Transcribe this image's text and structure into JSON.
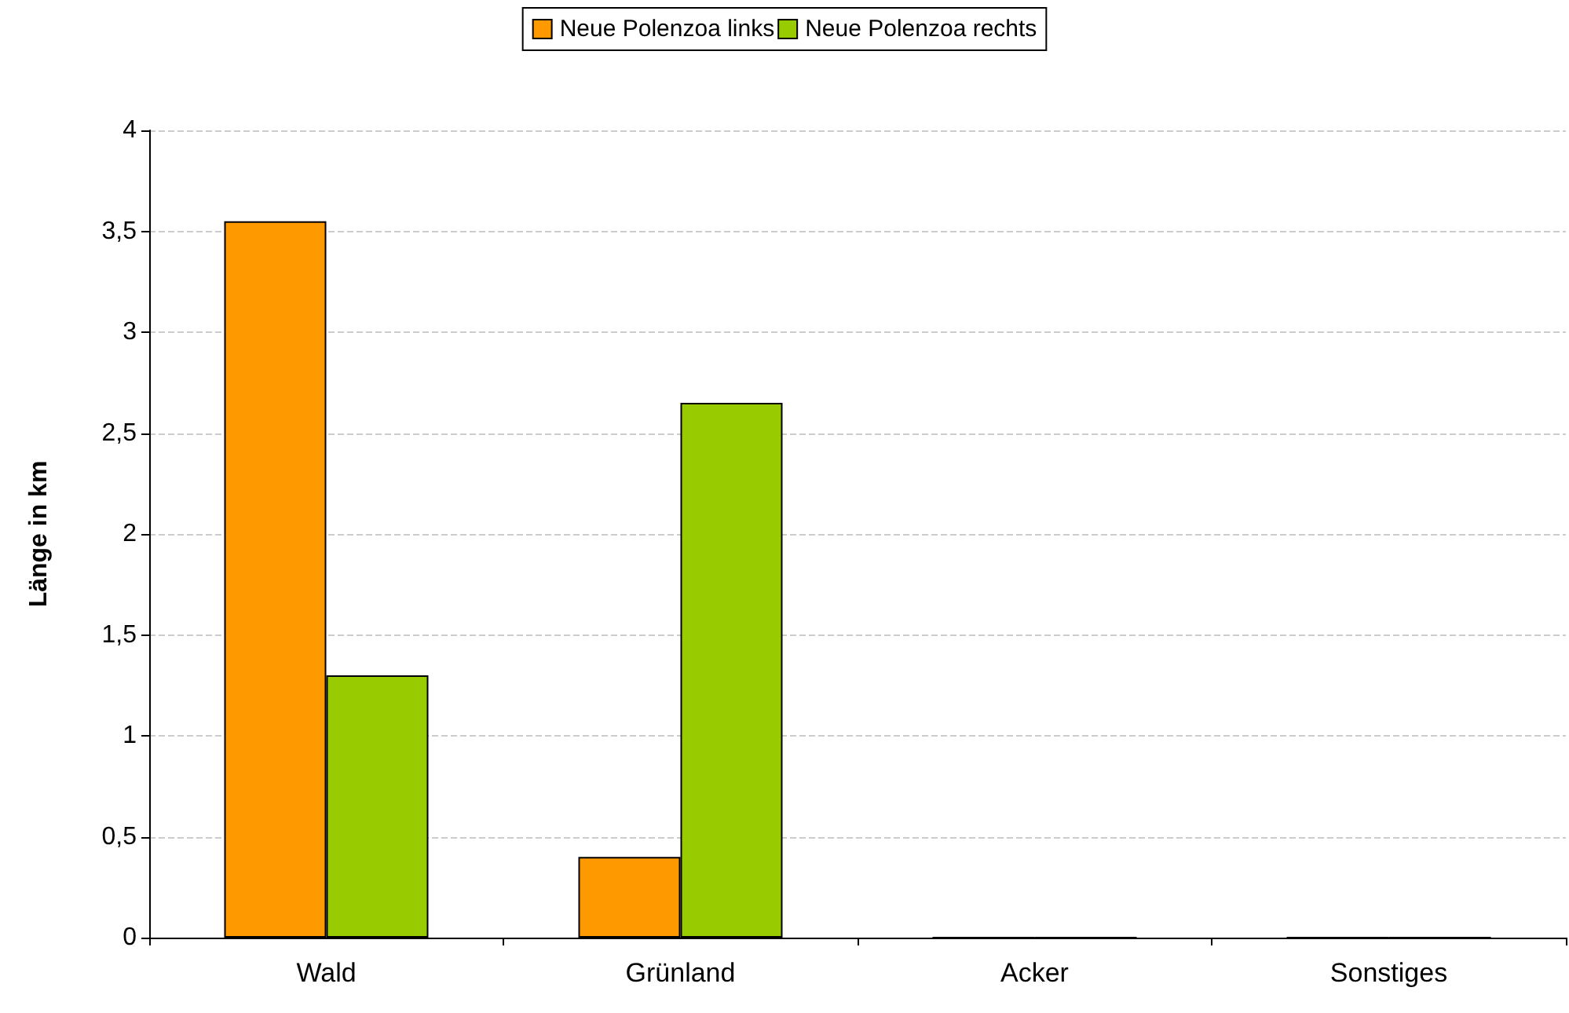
{
  "chart_data": {
    "type": "bar",
    "ylabel": "Länge in km",
    "categories": [
      "Wald",
      "Grünland",
      "Acker",
      "Sonstiges"
    ],
    "series": [
      {
        "name": "Neue Polenzoa links",
        "color": "#ff9900",
        "values": [
          3.55,
          0.4,
          0,
          0
        ]
      },
      {
        "name": "Neue Polenzoa rechts",
        "color": "#99cc00",
        "values": [
          1.3,
          2.65,
          0,
          0
        ]
      }
    ],
    "ylim": [
      0,
      4
    ],
    "yticks": [
      0,
      {
        "value": 0.5,
        "label": "0,5"
      },
      1,
      {
        "value": 1.5,
        "label": "1,5"
      },
      2,
      {
        "value": 2.5,
        "label": "2,5"
      },
      3,
      {
        "value": 3.5,
        "label": "3,5"
      },
      4
    ],
    "grid": "y",
    "legend": "top"
  }
}
